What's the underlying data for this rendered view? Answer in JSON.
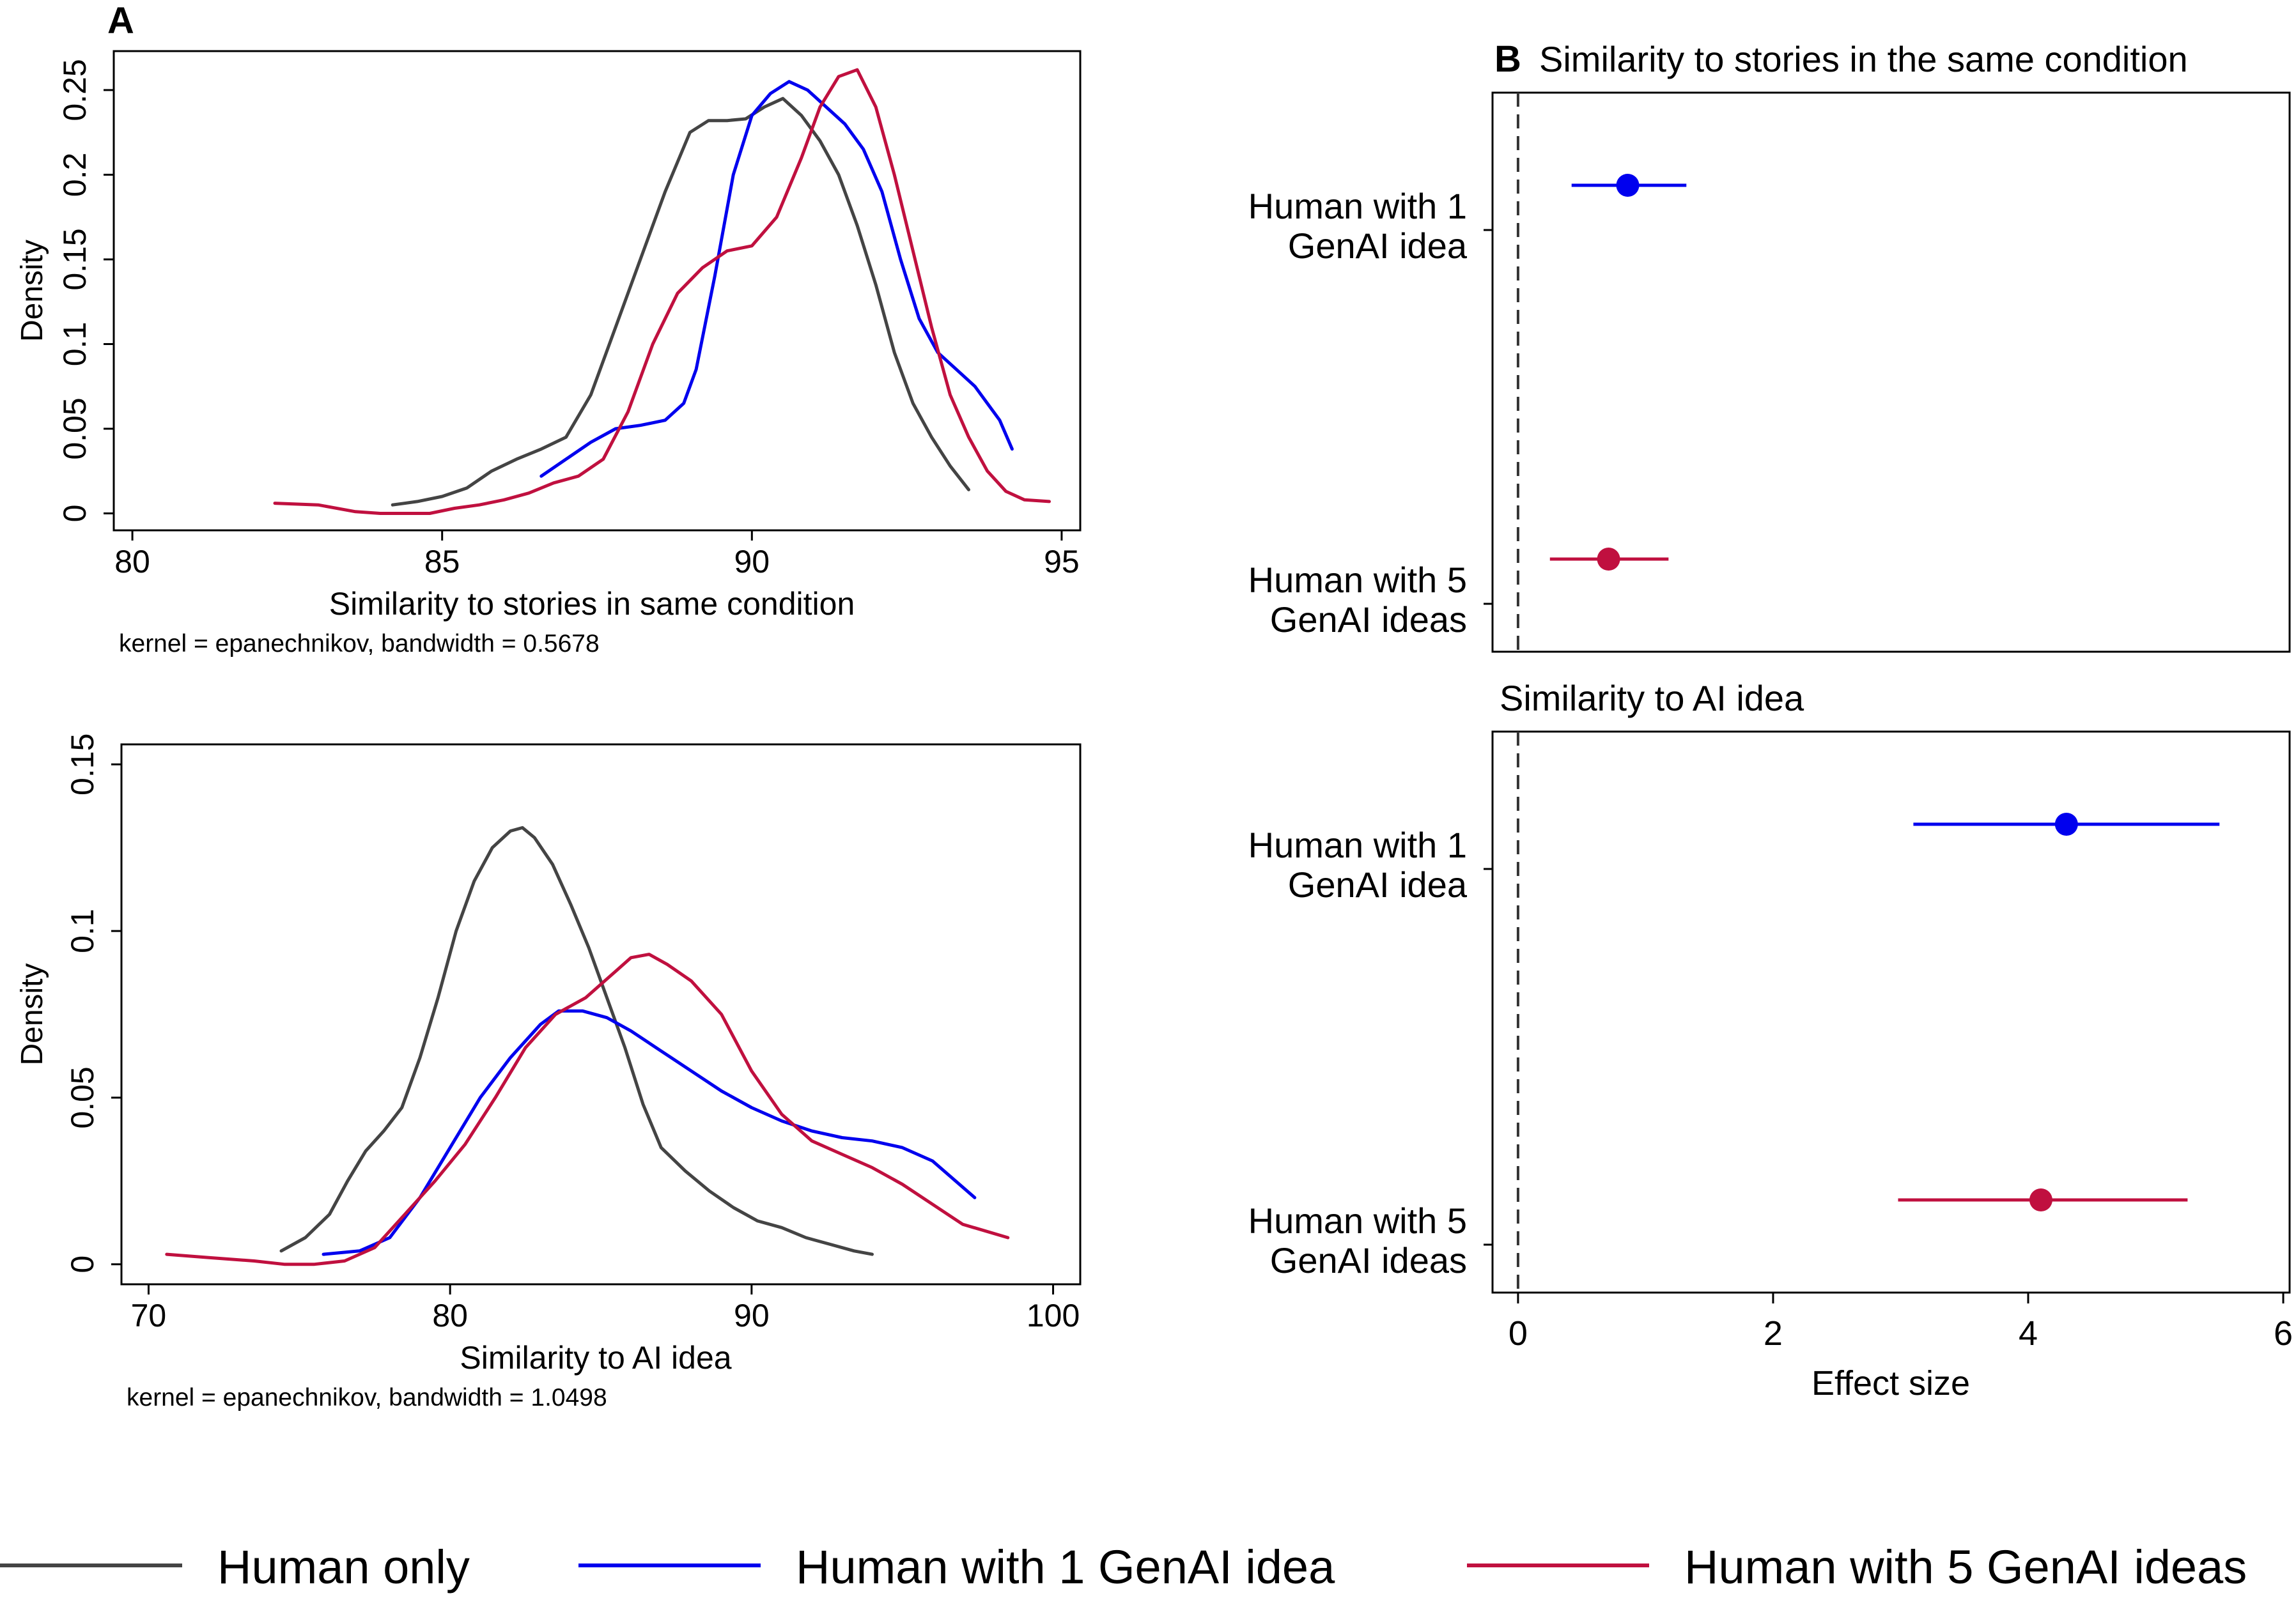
{
  "colors": {
    "human_only": "#444444",
    "one_idea": "#0000ee",
    "five_ideas": "#c0103f"
  },
  "panel_labels": {
    "a": "A",
    "b": "B"
  },
  "legend": [
    "Human only",
    "Human with 1 GenAI idea",
    "Human with 5 GenAI ideas"
  ],
  "chart_data": [
    {
      "id": "a-top",
      "type": "line",
      "xlabel": "Similarity to stories in same condition",
      "ylabel": "Density",
      "note": "kernel = epanechnikov, bandwidth = 0.5678",
      "xlim": [
        79.7,
        95.3
      ],
      "ylim": [
        -0.01,
        0.273
      ],
      "xticks": [
        80,
        85,
        90,
        95
      ],
      "yticks": [
        0,
        0.05,
        0.1,
        0.15,
        0.2,
        0.25
      ],
      "ytick_labels": [
        "0",
        "0.05",
        "0.1",
        "0.15",
        "0.2",
        "0.25"
      ],
      "series": [
        {
          "name": "Human only",
          "color": "#444444",
          "x": [
            84.2,
            84.6,
            85.0,
            85.4,
            85.8,
            86.2,
            86.6,
            87.0,
            87.4,
            87.8,
            88.2,
            88.6,
            89.0,
            89.3,
            89.6,
            89.9,
            90.2,
            90.5,
            90.8,
            91.1,
            91.4,
            91.7,
            92.0,
            92.3,
            92.6,
            92.9,
            93.2,
            93.5
          ],
          "y": [
            0.005,
            0.007,
            0.01,
            0.015,
            0.025,
            0.032,
            0.038,
            0.045,
            0.07,
            0.11,
            0.15,
            0.19,
            0.225,
            0.232,
            0.232,
            0.233,
            0.24,
            0.245,
            0.235,
            0.22,
            0.2,
            0.17,
            0.135,
            0.095,
            0.065,
            0.045,
            0.028,
            0.014
          ]
        },
        {
          "name": "Human with 1 GenAI idea",
          "color": "#0000ee",
          "x": [
            86.6,
            87.0,
            87.4,
            87.8,
            88.2,
            88.6,
            88.9,
            89.1,
            89.4,
            89.7,
            90.0,
            90.3,
            90.6,
            90.9,
            91.2,
            91.5,
            91.8,
            92.1,
            92.4,
            92.7,
            93.0,
            93.3,
            93.6,
            94.0,
            94.2
          ],
          "y": [
            0.022,
            0.032,
            0.042,
            0.05,
            0.052,
            0.055,
            0.065,
            0.085,
            0.14,
            0.2,
            0.235,
            0.248,
            0.255,
            0.25,
            0.24,
            0.23,
            0.215,
            0.19,
            0.15,
            0.115,
            0.095,
            0.085,
            0.075,
            0.055,
            0.038
          ]
        },
        {
          "name": "Human with 5 GenAI ideas",
          "color": "#c0103f",
          "x": [
            82.3,
            83.0,
            83.6,
            84.0,
            84.4,
            84.8,
            85.2,
            85.6,
            86.0,
            86.4,
            86.8,
            87.2,
            87.6,
            88.0,
            88.4,
            88.8,
            89.2,
            89.6,
            90.0,
            90.4,
            90.8,
            91.1,
            91.4,
            91.7,
            92.0,
            92.3,
            92.6,
            92.9,
            93.2,
            93.5,
            93.8,
            94.1,
            94.4,
            94.8
          ],
          "y": [
            0.006,
            0.005,
            0.001,
            0.0,
            0.0,
            0.0,
            0.003,
            0.005,
            0.008,
            0.012,
            0.018,
            0.022,
            0.032,
            0.06,
            0.1,
            0.13,
            0.145,
            0.155,
            0.158,
            0.175,
            0.21,
            0.24,
            0.258,
            0.262,
            0.24,
            0.2,
            0.155,
            0.11,
            0.07,
            0.045,
            0.025,
            0.013,
            0.008,
            0.007
          ]
        }
      ]
    },
    {
      "id": "a-bottom",
      "type": "line",
      "xlabel": "Similarity to AI idea",
      "ylabel": "Density",
      "note": "kernel = epanechnikov, bandwidth = 1.0498",
      "xlim": [
        69.1,
        100.9
      ],
      "ylim": [
        -0.006,
        0.156
      ],
      "xticks": [
        70,
        80,
        90,
        100
      ],
      "yticks": [
        0,
        0.05,
        0.1,
        0.15
      ],
      "ytick_labels": [
        "0",
        "0.05",
        "0.1",
        "0.15"
      ],
      "series": [
        {
          "name": "Human only",
          "color": "#444444",
          "x": [
            74.4,
            75.2,
            76.0,
            76.6,
            77.2,
            77.8,
            78.4,
            79.0,
            79.6,
            80.2,
            80.8,
            81.4,
            82.0,
            82.4,
            82.8,
            83.4,
            84.0,
            84.6,
            85.2,
            85.8,
            86.4,
            87.0,
            87.8,
            88.6,
            89.4,
            90.2,
            91.0,
            91.8,
            92.6,
            93.4,
            94.0
          ],
          "y": [
            0.004,
            0.008,
            0.015,
            0.025,
            0.034,
            0.04,
            0.047,
            0.062,
            0.08,
            0.1,
            0.115,
            0.125,
            0.13,
            0.131,
            0.128,
            0.12,
            0.108,
            0.095,
            0.08,
            0.065,
            0.048,
            0.035,
            0.028,
            0.022,
            0.017,
            0.013,
            0.011,
            0.008,
            0.006,
            0.004,
            0.003
          ]
        },
        {
          "name": "Human with 1 GenAI idea",
          "color": "#0000ee",
          "x": [
            75.8,
            77.0,
            78.0,
            79.0,
            80.0,
            81.0,
            82.0,
            83.0,
            83.6,
            84.4,
            85.2,
            86.0,
            87.0,
            88.0,
            89.0,
            90.0,
            91.0,
            92.0,
            93.0,
            94.0,
            95.0,
            96.0,
            97.4
          ],
          "y": [
            0.003,
            0.004,
            0.008,
            0.02,
            0.035,
            0.05,
            0.062,
            0.072,
            0.076,
            0.076,
            0.074,
            0.07,
            0.064,
            0.058,
            0.052,
            0.047,
            0.043,
            0.04,
            0.038,
            0.037,
            0.035,
            0.031,
            0.02
          ]
        },
        {
          "name": "Human with 5 GenAI ideas",
          "color": "#c0103f",
          "x": [
            70.6,
            72.0,
            73.5,
            74.5,
            75.5,
            76.5,
            77.5,
            78.5,
            79.5,
            80.5,
            81.5,
            82.5,
            83.5,
            84.5,
            85.5,
            86.0,
            86.6,
            87.2,
            88.0,
            89.0,
            90.0,
            91.0,
            92.0,
            93.0,
            94.0,
            95.0,
            96.0,
            97.0,
            98.5
          ],
          "y": [
            0.003,
            0.002,
            0.001,
            0.0,
            0.0,
            0.001,
            0.005,
            0.015,
            0.025,
            0.036,
            0.05,
            0.065,
            0.075,
            0.08,
            0.088,
            0.092,
            0.093,
            0.09,
            0.085,
            0.075,
            0.058,
            0.045,
            0.037,
            0.033,
            0.029,
            0.024,
            0.018,
            0.012,
            0.008
          ]
        }
      ]
    },
    {
      "id": "b",
      "type": "scatter",
      "xlabel": "Effect size",
      "xlim": [
        -0.2,
        6.05
      ],
      "xticks": [
        0,
        2,
        4,
        6
      ],
      "panels": [
        {
          "title": "Similarity to stories in the same condition",
          "rows": [
            {
              "label": [
                "Human with 1",
                "GenAI idea"
              ],
              "estimate": 0.86,
              "ci": [
                0.42,
                1.32
              ],
              "color": "#0000ee"
            },
            {
              "label": [
                "Human with 5",
                "GenAI ideas"
              ],
              "estimate": 0.71,
              "ci": [
                0.25,
                1.18
              ],
              "color": "#c0103f"
            }
          ]
        },
        {
          "title": "Similarity to AI idea",
          "rows": [
            {
              "label": [
                "Human with 1",
                "GenAI idea"
              ],
              "estimate": 4.3,
              "ci": [
                3.1,
                5.5
              ],
              "color": "#0000ee"
            },
            {
              "label": [
                "Human with 5",
                "GenAI ideas"
              ],
              "estimate": 4.1,
              "ci": [
                2.98,
                5.25
              ],
              "color": "#c0103f"
            }
          ]
        }
      ]
    }
  ]
}
